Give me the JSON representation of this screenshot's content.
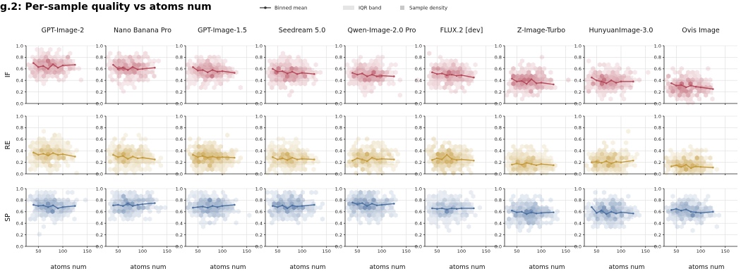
{
  "figure": {
    "title": "g.2: Per-sample quality vs atoms num",
    "legend": [
      {
        "key": "binned_mean",
        "label": "Binned mean"
      },
      {
        "key": "iqr_band",
        "label": "IQR band"
      },
      {
        "key": "sample_density",
        "label": "Sample density"
      }
    ]
  },
  "chart_data": {
    "type": "scatter",
    "subtype": "hexbin density with binned mean line and IQR band",
    "xlabel": "atoms num",
    "xlim": [
      25,
      175
    ],
    "xticks": [
      50,
      100,
      150
    ],
    "ylim": [
      0,
      1
    ],
    "yticks": [
      0.0,
      0.2,
      0.4,
      0.6,
      0.8,
      1.0
    ],
    "grid": true,
    "legend_position": "top-center",
    "models": [
      "GPT-Image-2",
      "Nano Banana Pro",
      "GPT-Image-1.5",
      "Seedream 5.0",
      "Qwen-Image-2.0 Pro",
      "FLUX.2 [dev]",
      "Z-Image-Turbo",
      "HunyuanImage-3.0",
      "Ovis Image"
    ],
    "metrics": [
      {
        "name": "IF",
        "color": "#b5495a"
      },
      {
        "name": "RE",
        "color": "#c49a3a"
      },
      {
        "name": "SP",
        "color": "#4a6fa0"
      }
    ],
    "binned_x": [
      40,
      50,
      60,
      70,
      80,
      90,
      100,
      125
    ],
    "binned_mean": {
      "IF": [
        [
          0.7,
          0.63,
          0.65,
          0.6,
          0.68,
          0.62,
          0.66,
          0.67
        ],
        [
          0.67,
          0.6,
          0.62,
          0.58,
          0.63,
          0.59,
          0.6,
          0.62
        ],
        [
          0.63,
          0.57,
          0.58,
          0.54,
          0.58,
          0.55,
          0.56,
          0.53
        ],
        [
          0.6,
          0.55,
          0.56,
          0.52,
          0.55,
          0.51,
          0.53,
          0.51
        ],
        [
          0.53,
          0.5,
          0.52,
          0.47,
          0.5,
          0.47,
          0.48,
          0.47
        ],
        [
          0.54,
          0.51,
          0.52,
          0.49,
          0.5,
          0.48,
          0.49,
          0.45
        ],
        [
          0.43,
          0.38,
          0.39,
          0.34,
          0.42,
          0.35,
          0.36,
          0.33
        ],
        [
          0.45,
          0.4,
          0.38,
          0.35,
          0.4,
          0.36,
          0.38,
          0.38
        ],
        [
          0.35,
          0.31,
          0.32,
          0.28,
          0.31,
          0.29,
          0.28,
          0.25
        ]
      ],
      "RE": [
        [
          0.37,
          0.33,
          0.35,
          0.32,
          0.36,
          0.33,
          0.34,
          0.3
        ],
        [
          0.33,
          0.29,
          0.31,
          0.26,
          0.3,
          0.27,
          0.28,
          0.25
        ],
        [
          0.33,
          0.29,
          0.31,
          0.28,
          0.3,
          0.28,
          0.29,
          0.28
        ],
        [
          0.29,
          0.25,
          0.27,
          0.24,
          0.28,
          0.25,
          0.26,
          0.25
        ],
        [
          0.23,
          0.27,
          0.25,
          0.22,
          0.28,
          0.25,
          0.26,
          0.25
        ],
        [
          0.24,
          0.27,
          0.25,
          0.33,
          0.26,
          0.24,
          0.25,
          0.23
        ],
        [
          0.16,
          0.18,
          0.16,
          0.19,
          0.17,
          0.15,
          0.17,
          0.15
        ],
        [
          0.2,
          0.21,
          0.19,
          0.22,
          0.18,
          0.21,
          0.2,
          0.23
        ],
        [
          0.13,
          0.15,
          0.12,
          0.16,
          0.1,
          0.13,
          0.12,
          0.11
        ]
      ],
      "SP": [
        [
          0.72,
          0.7,
          0.71,
          0.68,
          0.71,
          0.66,
          0.68,
          0.7
        ],
        [
          0.71,
          0.72,
          0.7,
          0.74,
          0.7,
          0.72,
          0.73,
          0.75
        ],
        [
          0.67,
          0.68,
          0.69,
          0.67,
          0.7,
          0.68,
          0.7,
          0.72
        ],
        [
          0.7,
          0.68,
          0.71,
          0.66,
          0.71,
          0.69,
          0.7,
          0.72
        ],
        [
          0.76,
          0.73,
          0.75,
          0.7,
          0.74,
          0.71,
          0.72,
          0.74
        ],
        [
          0.66,
          0.65,
          0.66,
          0.64,
          0.66,
          0.65,
          0.66,
          0.66
        ],
        [
          0.62,
          0.59,
          0.6,
          0.56,
          0.59,
          0.57,
          0.58,
          0.59
        ],
        [
          0.68,
          0.58,
          0.62,
          0.56,
          0.6,
          0.57,
          0.59,
          0.57
        ],
        [
          0.63,
          0.65,
          0.62,
          0.64,
          0.6,
          0.59,
          0.58,
          0.6
        ]
      ]
    }
  }
}
